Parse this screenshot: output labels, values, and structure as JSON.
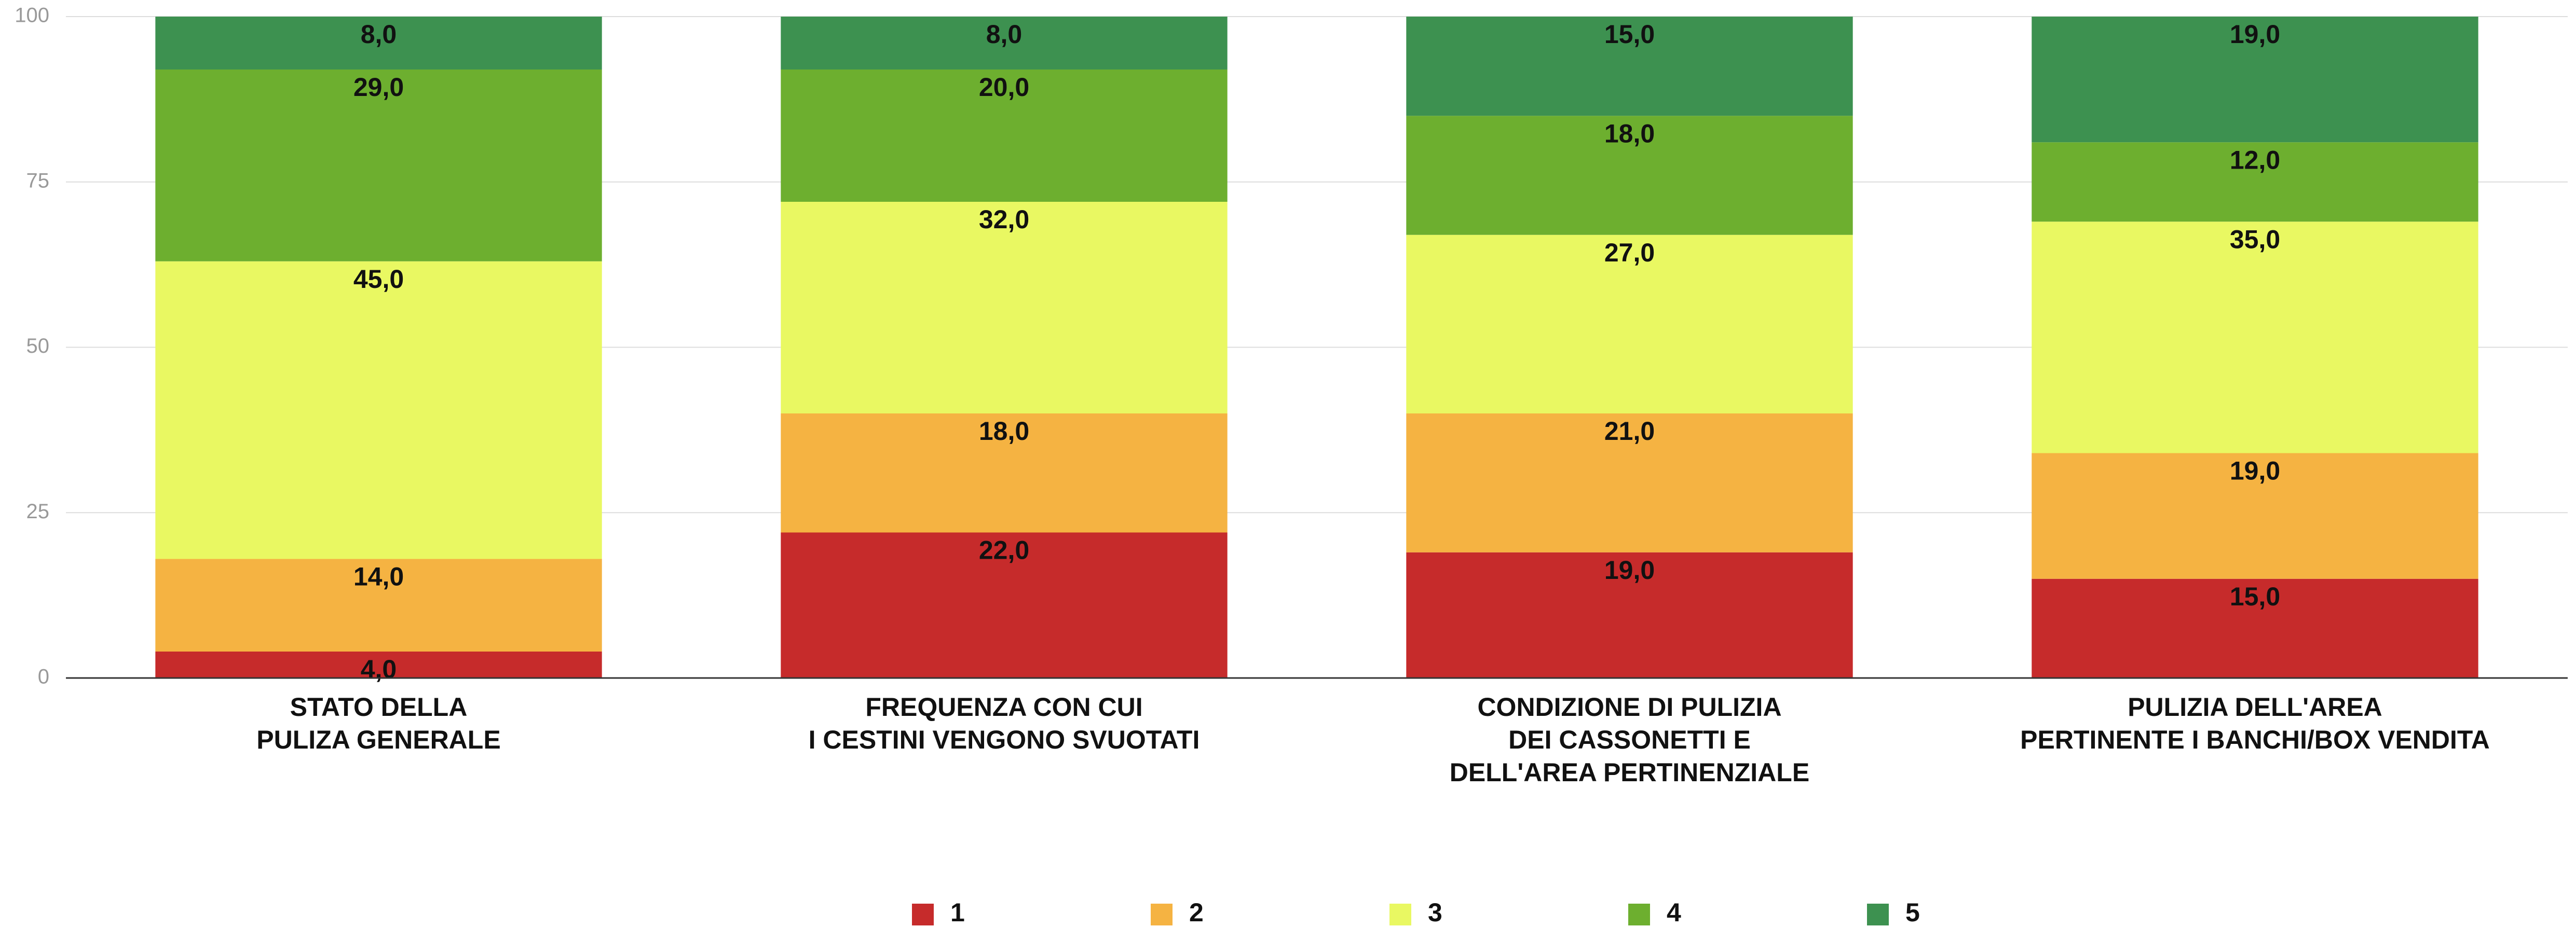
{
  "chart_data": {
    "type": "stacked_bar",
    "categories": [
      [
        "STATO DELLA",
        "PULIZA GENERALE"
      ],
      [
        "FREQUENZA CON CUI",
        "I CESTINI VENGONO SVUOTATI"
      ],
      [
        "CONDIZIONE DI PULIZIA",
        "DEI CASSONETTI E",
        "DELL'AREA PERTINENZIALE"
      ],
      [
        "PULIZIA DELL'AREA",
        "PERTINENTE I BANCHI/BOX VENDITA"
      ]
    ],
    "series": [
      {
        "name": "1",
        "color": "#c62b2b",
        "values": [
          4,
          22,
          19,
          15
        ],
        "value_labels": [
          "4,0",
          "22,0",
          "19,0",
          "15,0"
        ]
      },
      {
        "name": "2",
        "color": "#f5b342",
        "values": [
          14,
          18,
          21,
          19
        ],
        "value_labels": [
          "14,0",
          "18,0",
          "21,0",
          "19,0"
        ]
      },
      {
        "name": "3",
        "color": "#e9f862",
        "values": [
          45,
          32,
          27,
          35
        ],
        "value_labels": [
          "45,0",
          "32,0",
          "27,0",
          "35,0"
        ]
      },
      {
        "name": "4",
        "color": "#6daf2f",
        "values": [
          29,
          20,
          18,
          12
        ],
        "value_labels": [
          "29,0",
          "20,0",
          "18,0",
          "12,0"
        ]
      },
      {
        "name": "5",
        "color": "#3d9150",
        "values": [
          8,
          8,
          15,
          19
        ],
        "value_labels": [
          "8,0",
          "8,0",
          "15,0",
          "19,0"
        ]
      }
    ],
    "ylim": [
      0,
      100
    ],
    "yticks": [
      0,
      25,
      50,
      75,
      100
    ],
    "grid": true,
    "legend": "bottom"
  }
}
